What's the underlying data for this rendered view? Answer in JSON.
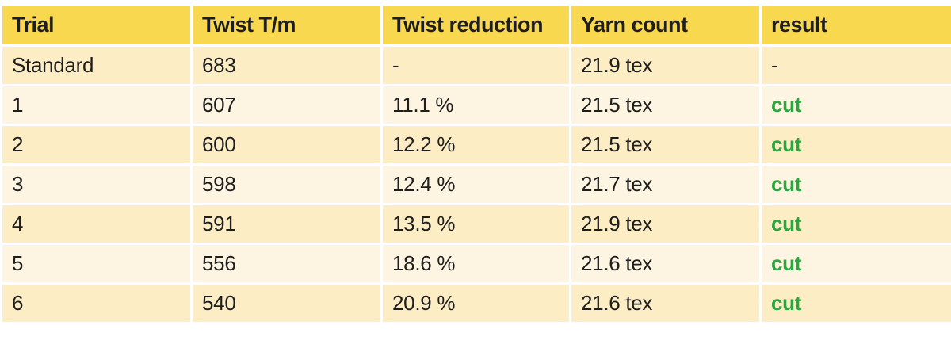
{
  "table": {
    "header": [
      "Trial",
      "Twist T/m",
      "Twist reduction",
      "Yarn count",
      "result"
    ],
    "rows": [
      [
        "Standard",
        "683",
        "-",
        "21.9 tex",
        "-"
      ],
      [
        "1",
        "607",
        "11.1 %",
        "21.5 tex",
        "cut"
      ],
      [
        "2",
        "600",
        "12.2 %",
        "21.5 tex",
        "cut"
      ],
      [
        "3",
        "598",
        "12.4 %",
        "21.7 tex",
        "cut"
      ],
      [
        "4",
        "591",
        "13.5 %",
        "21.9 tex",
        "cut"
      ],
      [
        "5",
        "556",
        "18.6 %",
        "21.6 tex",
        "cut"
      ],
      [
        "6",
        "540",
        "20.9 %",
        "21.6 tex",
        "cut"
      ]
    ]
  }
}
